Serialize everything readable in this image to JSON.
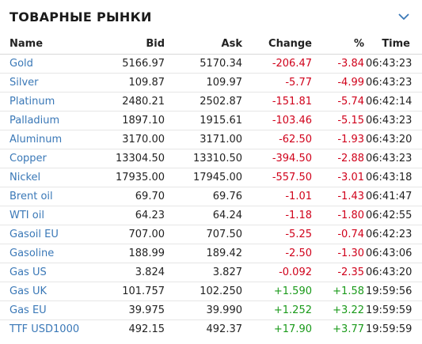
{
  "widget": {
    "title": "ТОВАРНЫЕ РЫНКИ",
    "toggle_icon": "chevron-down-icon",
    "accent": "#3a78b7",
    "negative_color": "#d0021b",
    "positive_color": "#1a9a1a"
  },
  "table": {
    "headers": {
      "name": "Name",
      "bid": "Bid",
      "ask": "Ask",
      "change": "Change",
      "pct": "%",
      "time": "Time"
    },
    "rows": [
      {
        "name": "Gold",
        "bid": "5166.97",
        "ask": "5170.34",
        "change": "-206.47",
        "pct": "-3.84",
        "time": "06:43:23",
        "dir": "neg"
      },
      {
        "name": "Silver",
        "bid": "109.87",
        "ask": "109.97",
        "change": "-5.77",
        "pct": "-4.99",
        "time": "06:43:23",
        "dir": "neg"
      },
      {
        "name": "Platinum",
        "bid": "2480.21",
        "ask": "2502.87",
        "change": "-151.81",
        "pct": "-5.74",
        "time": "06:42:14",
        "dir": "neg"
      },
      {
        "name": "Palladium",
        "bid": "1897.10",
        "ask": "1915.61",
        "change": "-103.46",
        "pct": "-5.15",
        "time": "06:43:23",
        "dir": "neg"
      },
      {
        "name": "Aluminum",
        "bid": "3170.00",
        "ask": "3171.00",
        "change": "-62.50",
        "pct": "-1.93",
        "time": "06:43:20",
        "dir": "neg"
      },
      {
        "name": "Copper",
        "bid": "13304.50",
        "ask": "13310.50",
        "change": "-394.50",
        "pct": "-2.88",
        "time": "06:43:23",
        "dir": "neg"
      },
      {
        "name": "Nickel",
        "bid": "17935.00",
        "ask": "17945.00",
        "change": "-557.50",
        "pct": "-3.01",
        "time": "06:43:18",
        "dir": "neg"
      },
      {
        "name": "Brent oil",
        "bid": "69.70",
        "ask": "69.76",
        "change": "-1.01",
        "pct": "-1.43",
        "time": "06:41:47",
        "dir": "neg"
      },
      {
        "name": "WTI oil",
        "bid": "64.23",
        "ask": "64.24",
        "change": "-1.18",
        "pct": "-1.80",
        "time": "06:42:55",
        "dir": "neg"
      },
      {
        "name": "Gasoil EU",
        "bid": "707.00",
        "ask": "707.50",
        "change": "-5.25",
        "pct": "-0.74",
        "time": "06:42:23",
        "dir": "neg"
      },
      {
        "name": "Gasoline",
        "bid": "188.99",
        "ask": "189.42",
        "change": "-2.50",
        "pct": "-1.30",
        "time": "06:43:06",
        "dir": "neg"
      },
      {
        "name": "Gas US",
        "bid": "3.824",
        "ask": "3.827",
        "change": "-0.092",
        "pct": "-2.35",
        "time": "06:43:20",
        "dir": "neg"
      },
      {
        "name": "Gas UK",
        "bid": "101.757",
        "ask": "102.250",
        "change": "+1.590",
        "pct": "+1.58",
        "time": "19:59:56",
        "dir": "pos"
      },
      {
        "name": "Gas EU",
        "bid": "39.975",
        "ask": "39.990",
        "change": "+1.252",
        "pct": "+3.22",
        "time": "19:59:59",
        "dir": "pos"
      },
      {
        "name": "TTF USD1000",
        "bid": "492.15",
        "ask": "492.37",
        "change": "+17.90",
        "pct": "+3.77",
        "time": "19:59:59",
        "dir": "pos"
      }
    ]
  }
}
